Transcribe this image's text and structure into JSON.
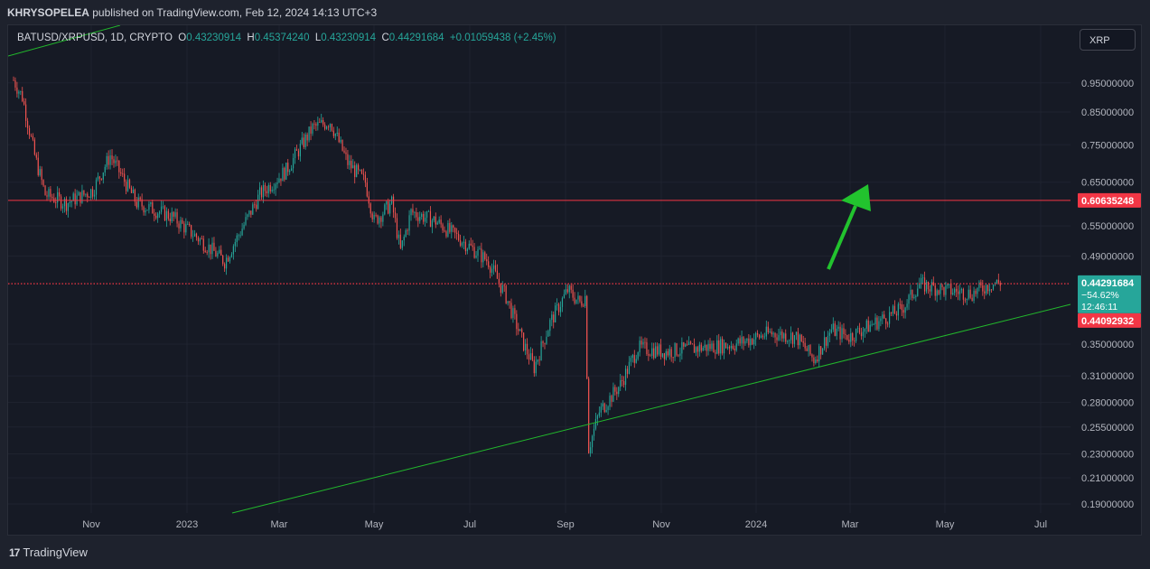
{
  "header": {
    "author": "KHRYSOPELEA",
    "text": "published on TradingView.com, Feb 12, 2024 14:13 UTC+3"
  },
  "legend": {
    "symbol": "BATUSD/XRPUSD, 1D, CRYPTO",
    "open_label": "O",
    "open": "0.43230914",
    "high_label": "H",
    "high": "0.45374240",
    "low_label": "L",
    "low": "0.43230914",
    "close_label": "C",
    "close": "0.44291684",
    "change": "+0.01059438 (+2.45%)"
  },
  "toolbar": {
    "currency_button": "XRP"
  },
  "footer": {
    "brand": "TradingView",
    "logo_glyph": "17"
  },
  "colors": {
    "up": "#26a69a",
    "down": "#ef5350",
    "trend": "#22b82c",
    "resistance": "#f23645",
    "arrow": "#22c32e"
  },
  "chart_data": {
    "type": "candlestick",
    "scale": "log",
    "y_ticks": [
      "0.95000000",
      "0.85000000",
      "0.75000000",
      "0.65000000",
      "0.55000000",
      "0.49000000",
      "0.35000000",
      "0.31000000",
      "0.28000000",
      "0.25500000",
      "0.23000000",
      "0.21000000",
      "0.19000000"
    ],
    "x_ticks": [
      "Nov",
      "2023",
      "Mar",
      "May",
      "Jul",
      "Sep",
      "Nov",
      "2024",
      "Mar",
      "May",
      "Jul"
    ],
    "price_labels": {
      "resistance": "0.60635248",
      "last_price": "0.44291684",
      "last_change": "−54.62%",
      "countdown": "12:46:11",
      "support_dotted": "0.44092932"
    },
    "anchors": [
      {
        "t": 0,
        "p": 0.96
      },
      {
        "t": 5,
        "p": 0.9
      },
      {
        "t": 12,
        "p": 0.72
      },
      {
        "t": 18,
        "p": 0.62
      },
      {
        "t": 30,
        "p": 0.6
      },
      {
        "t": 45,
        "p": 0.63
      },
      {
        "t": 55,
        "p": 0.72
      },
      {
        "t": 70,
        "p": 0.6
      },
      {
        "t": 90,
        "p": 0.57
      },
      {
        "t": 110,
        "p": 0.51
      },
      {
        "t": 120,
        "p": 0.48
      },
      {
        "t": 140,
        "p": 0.62
      },
      {
        "t": 155,
        "p": 0.68
      },
      {
        "t": 170,
        "p": 0.8
      },
      {
        "t": 180,
        "p": 0.82
      },
      {
        "t": 190,
        "p": 0.7
      },
      {
        "t": 200,
        "p": 0.65
      },
      {
        "t": 205,
        "p": 0.56
      },
      {
        "t": 215,
        "p": 0.6
      },
      {
        "t": 220,
        "p": 0.5
      },
      {
        "t": 226,
        "p": 0.58
      },
      {
        "t": 240,
        "p": 0.56
      },
      {
        "t": 255,
        "p": 0.52
      },
      {
        "t": 270,
        "p": 0.48
      },
      {
        "t": 280,
        "p": 0.42
      },
      {
        "t": 290,
        "p": 0.35
      },
      {
        "t": 296,
        "p": 0.32
      },
      {
        "t": 305,
        "p": 0.38
      },
      {
        "t": 315,
        "p": 0.43
      },
      {
        "t": 322,
        "p": 0.41
      },
      {
        "t": 325,
        "p": 0.42
      },
      {
        "t": 327,
        "p": 0.235
      },
      {
        "t": 333,
        "p": 0.27
      },
      {
        "t": 345,
        "p": 0.3
      },
      {
        "t": 355,
        "p": 0.345
      },
      {
        "t": 370,
        "p": 0.34
      },
      {
        "t": 390,
        "p": 0.345
      },
      {
        "t": 410,
        "p": 0.35
      },
      {
        "t": 430,
        "p": 0.365
      },
      {
        "t": 445,
        "p": 0.36
      },
      {
        "t": 455,
        "p": 0.33
      },
      {
        "t": 465,
        "p": 0.37
      },
      {
        "t": 475,
        "p": 0.36
      },
      {
        "t": 490,
        "p": 0.38
      },
      {
        "t": 505,
        "p": 0.4
      },
      {
        "t": 515,
        "p": 0.44
      },
      {
        "t": 530,
        "p": 0.43
      },
      {
        "t": 545,
        "p": 0.425
      },
      {
        "t": 555,
        "p": 0.44
      },
      {
        "t": 561,
        "p": 0.443
      }
    ],
    "annotations": [
      {
        "type": "horizontal",
        "price": 0.60635248
      },
      {
        "type": "horizontal-dotted",
        "price": 0.44092932
      },
      {
        "type": "trendline"
      },
      {
        "type": "arrow",
        "direction": "up"
      }
    ]
  }
}
